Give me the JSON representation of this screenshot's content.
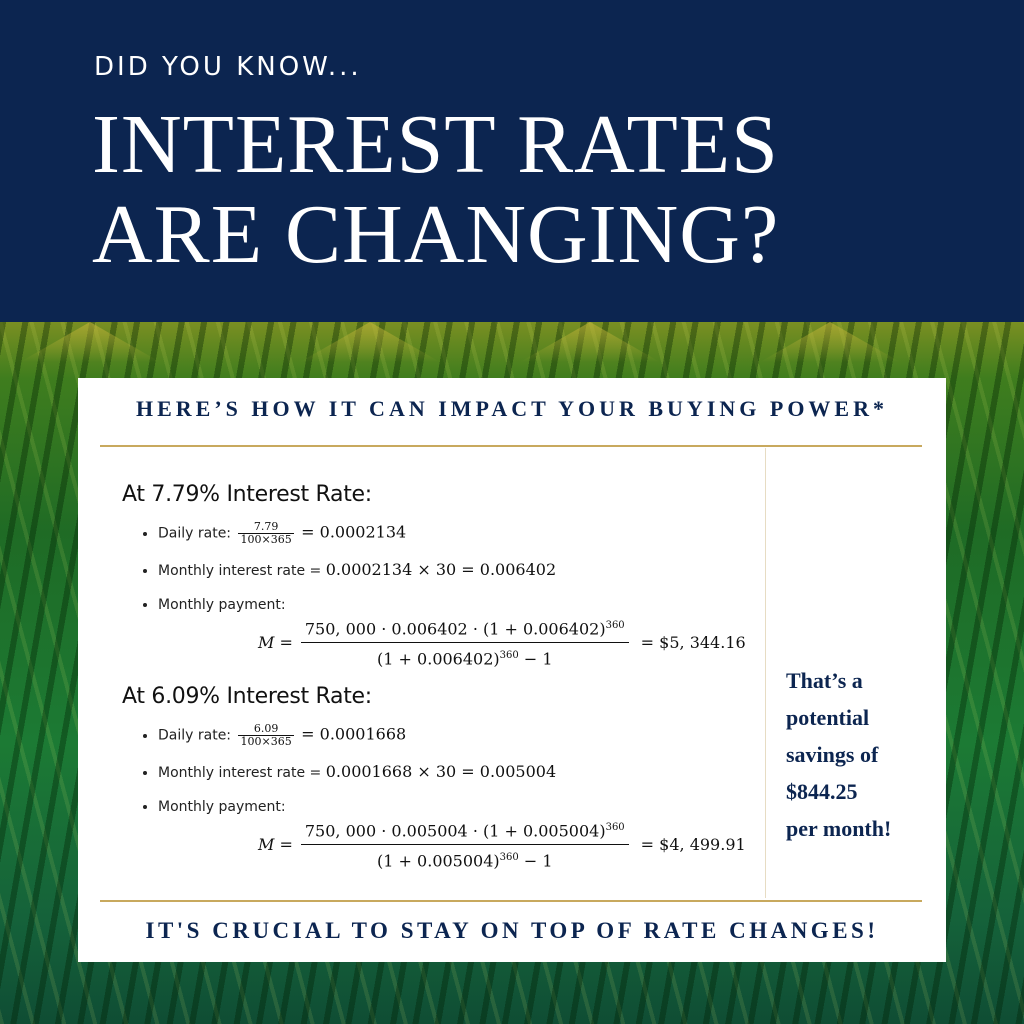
{
  "header": {
    "kicker": "DID YOU KNOW...",
    "headline_line1": "INTEREST RATES",
    "headline_line2": "ARE CHANGING?"
  },
  "card": {
    "title": "HERE’S HOW IT CAN IMPACT YOUR BUYING POWER*",
    "footer": "IT'S CRUCIAL TO STAY ON TOP OF RATE CHANGES!"
  },
  "sections": [
    {
      "heading": "At 7.79% Interest Rate:",
      "daily_label": "Daily rate:",
      "daily_num": "7.79",
      "daily_den": "100×365",
      "daily_result": "= 0.0002134",
      "monthly_label": "Monthly interest rate =",
      "monthly_expr": "0.0002134 × 30 = 0.006402",
      "payment_label": "Monthly payment:",
      "formula_lhs": "M =",
      "formula_num": "750, 000 · 0.006402 · (1 + 0.006402)",
      "formula_num_exp": "360",
      "formula_den": "(1 + 0.006402)",
      "formula_den_exp": "360",
      "formula_den_tail": " − 1",
      "formula_result": "= $5, 344.16"
    },
    {
      "heading": "At 6.09% Interest Rate:",
      "daily_label": "Daily rate:",
      "daily_num": "6.09",
      "daily_den": "100×365",
      "daily_result": "= 0.0001668",
      "monthly_label": "Monthly interest rate =",
      "monthly_expr": "0.0001668 × 30 = 0.005004",
      "payment_label": "Monthly payment:",
      "formula_lhs": "M =",
      "formula_num": "750, 000 · 0.005004 · (1 + 0.005004)",
      "formula_num_exp": "360",
      "formula_den": "(1 + 0.005004)",
      "formula_den_exp": "360",
      "formula_den_tail": " − 1",
      "formula_result": "= $4, 499.91"
    }
  ],
  "savings": {
    "line1": "That’s a",
    "line2": "potential",
    "line3": "savings of",
    "line4": "$844.25",
    "line5": "per month!"
  },
  "colors": {
    "navy": "#0c2550",
    "gold_rule": "#c8a95e"
  }
}
